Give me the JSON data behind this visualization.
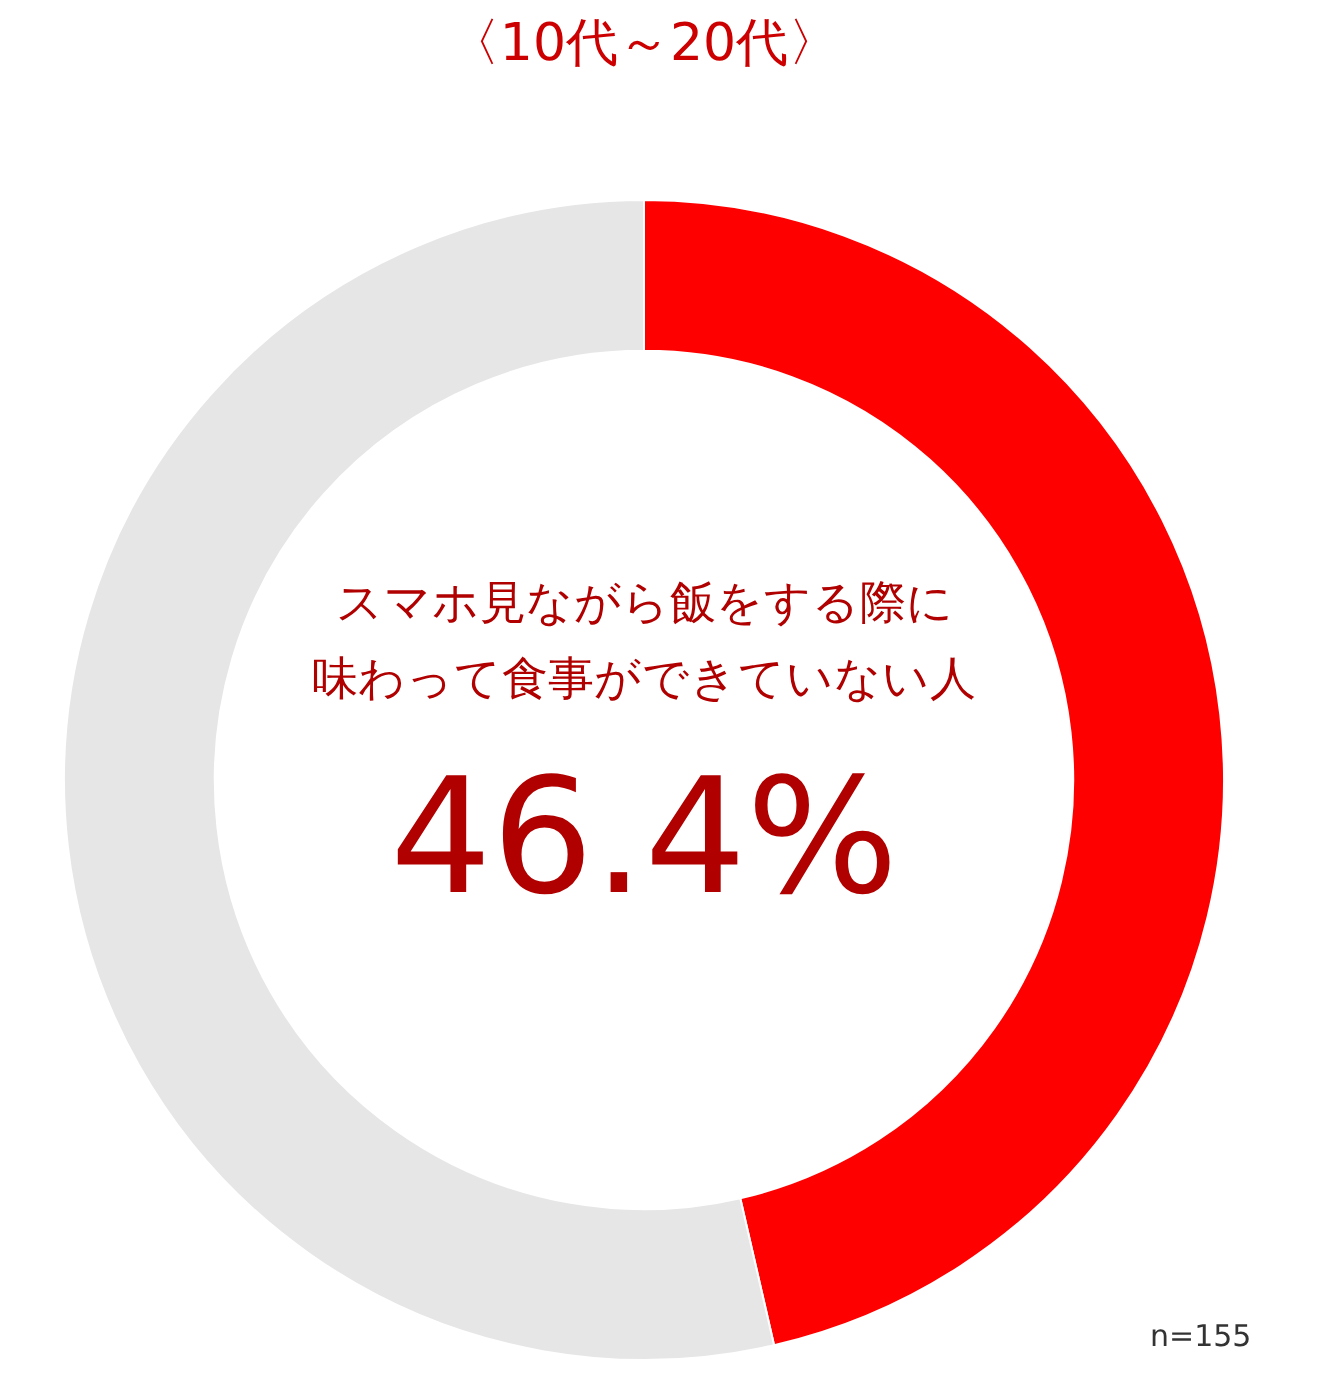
{
  "chart_data": {
    "type": "donut",
    "title": "〈10代～20代〉",
    "categories": [
      null,
      null
    ],
    "values": [
      46.4,
      53.6
    ],
    "colors": [
      "#ff0000",
      "#e6e6e6"
    ],
    "annotations": [
      "スマホ見ながら飯をする際に",
      "味わって食事ができていない人",
      "46.4%",
      "n=155"
    ],
    "legend": false
  }
}
